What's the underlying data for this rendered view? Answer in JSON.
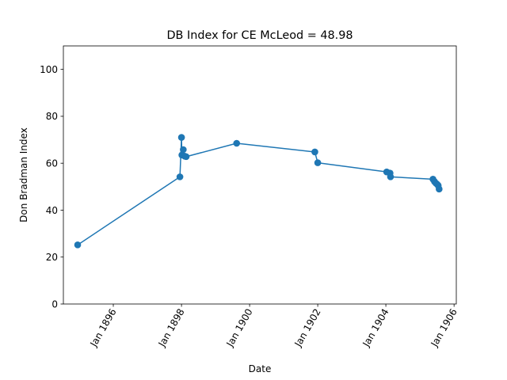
{
  "chart_data": {
    "type": "line",
    "title": "DB Index for CE McLeod = 48.98",
    "xlabel": "Date",
    "ylabel": "Don Bradman Index",
    "x_axis_type": "date",
    "xlim": [
      "1894-07-15",
      "1906-01-25"
    ],
    "ylim": [
      0,
      110
    ],
    "yticks": [
      0,
      20,
      40,
      60,
      80,
      100
    ],
    "xticks": [
      {
        "date": "1896-01-01",
        "label": "Jan 1896"
      },
      {
        "date": "1898-01-01",
        "label": "Jan 1898"
      },
      {
        "date": "1900-01-01",
        "label": "Jan 1900"
      },
      {
        "date": "1902-01-01",
        "label": "Jan 1902"
      },
      {
        "date": "1904-01-01",
        "label": "Jan 1904"
      },
      {
        "date": "1906-01-01",
        "label": "Jan 1906"
      }
    ],
    "grid": false,
    "legend": "none",
    "series": [
      {
        "color": "#1f77b4",
        "marker": "circle",
        "points": [
          {
            "x": "1894-12-15",
            "y": 25.2
          },
          {
            "x": "1897-12-15",
            "y": 54.2
          },
          {
            "x": "1898-01-01",
            "y": 71.0
          },
          {
            "x": "1898-01-05",
            "y": 63.5
          },
          {
            "x": "1898-01-20",
            "y": 65.8
          },
          {
            "x": "1898-02-05",
            "y": 63.0
          },
          {
            "x": "1898-02-20",
            "y": 62.8
          },
          {
            "x": "1899-08-15",
            "y": 68.5
          },
          {
            "x": "1901-12-01",
            "y": 64.8
          },
          {
            "x": "1902-01-01",
            "y": 60.2
          },
          {
            "x": "1904-01-10",
            "y": 56.3
          },
          {
            "x": "1904-02-15",
            "y": 55.8
          },
          {
            "x": "1904-02-20",
            "y": 54.2
          },
          {
            "x": "1905-05-20",
            "y": 53.2
          },
          {
            "x": "1905-06-05",
            "y": 52.2
          },
          {
            "x": "1905-06-20",
            "y": 51.5
          },
          {
            "x": "1905-07-05",
            "y": 51.0
          },
          {
            "x": "1905-07-15",
            "y": 50.5
          },
          {
            "x": "1905-07-25",
            "y": 48.98
          }
        ]
      }
    ]
  }
}
